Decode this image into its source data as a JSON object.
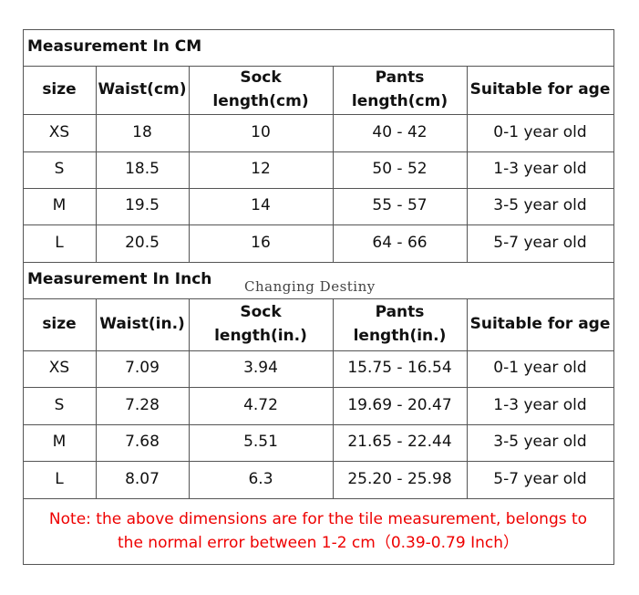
{
  "sections": [
    {
      "title": "Measurement In CM",
      "header": [
        "size",
        "Waist(cm)",
        "Sock\nlength(cm)",
        "Pants\nlength(cm)",
        "Suitable for age"
      ],
      "rows": [
        [
          "XS",
          "18",
          "10",
          "40 - 42",
          "0-1 year old"
        ],
        [
          "S",
          "18.5",
          "12",
          "50 - 52",
          "1-3 year old"
        ],
        [
          "M",
          "19.5",
          "14",
          "55 - 57",
          "3-5 year old"
        ],
        [
          "L",
          "20.5",
          "16",
          "64 - 66",
          "5-7 year old"
        ]
      ]
    },
    {
      "title": "Measurement In Inch",
      "header": [
        "size",
        "Waist(in.)",
        "Sock\nlength(in.)",
        "Pants\nlength(in.)",
        "Suitable for age"
      ],
      "rows": [
        [
          "XS",
          "7.09",
          "3.94",
          "15.75 - 16.54",
          "0-1 year old"
        ],
        [
          "S",
          "7.28",
          "4.72",
          "19.69 - 20.47",
          "1-3 year old"
        ],
        [
          "M",
          "7.68",
          "5.51",
          "21.65 - 22.44",
          "3-5 year old"
        ],
        [
          "L",
          "8.07",
          "6.3",
          "25.20 - 25.98",
          "5-7 year old"
        ]
      ]
    }
  ],
  "watermark": "Changing Destiny",
  "note": "Note: the above dimensions are for the tile measurement, belongs to\nthe normal error between 1-2 cm（0.39-0.79  Inch）"
}
